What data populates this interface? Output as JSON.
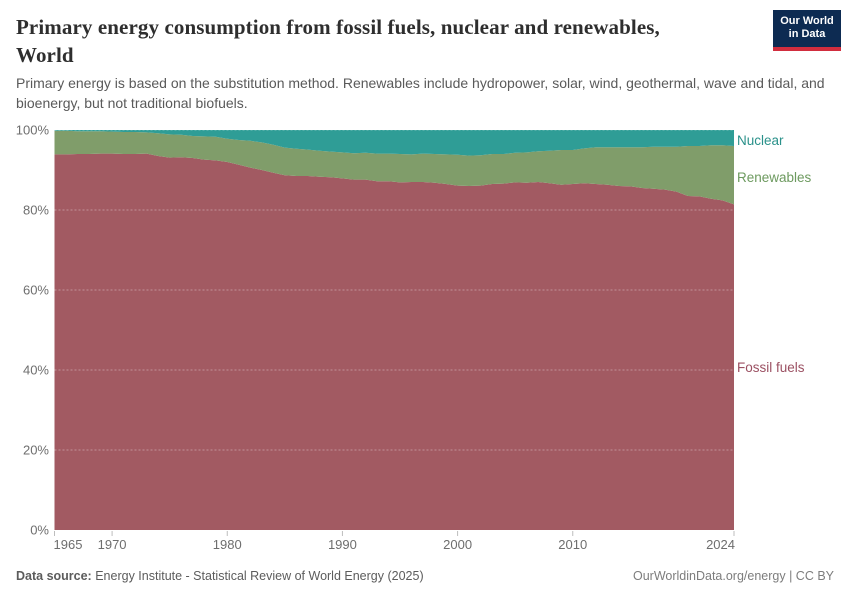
{
  "header": {
    "title": "Primary energy consumption from fossil fuels, nuclear and renewables, World",
    "subtitle": "Primary energy is based on the substitution method. Renewables include hydropower, solar, wind, geothermal, wave and tidal, and bioenergy, but not traditional biofuels.",
    "logo": {
      "line1": "Our World",
      "line2": "in Data",
      "bg_color": "#0d2b52",
      "bar_color": "#d12d3e"
    }
  },
  "footer": {
    "source_label": "Data source:",
    "source_text": "Energy Institute - Statistical Review of World Energy (2025)",
    "credit": "OurWorldinData.org/energy | CC BY"
  },
  "chart_data": {
    "type": "area",
    "stacked": true,
    "unit": "%",
    "ylim": [
      0,
      100
    ],
    "grid": true,
    "legend_position": "right",
    "yticks": [
      "0%",
      "20%",
      "40%",
      "60%",
      "80%",
      "100%"
    ],
    "xticks": [
      1965,
      1970,
      1980,
      1990,
      2000,
      2010,
      2024
    ],
    "x": [
      1965,
      1966,
      1967,
      1968,
      1969,
      1970,
      1971,
      1972,
      1973,
      1974,
      1975,
      1976,
      1977,
      1978,
      1979,
      1980,
      1981,
      1982,
      1983,
      1984,
      1985,
      1986,
      1987,
      1988,
      1989,
      1990,
      1991,
      1992,
      1993,
      1994,
      1995,
      1996,
      1997,
      1998,
      1999,
      2000,
      2001,
      2002,
      2003,
      2004,
      2005,
      2006,
      2007,
      2008,
      2009,
      2010,
      2011,
      2012,
      2013,
      2014,
      2015,
      2016,
      2017,
      2018,
      2019,
      2020,
      2021,
      2022,
      2023,
      2024
    ],
    "series": [
      {
        "name": "Fossil fuels",
        "color": "#a25a62",
        "label_color": "#9b5062",
        "values": [
          93.9,
          93.9,
          94.0,
          94.0,
          94.1,
          94.1,
          94.0,
          94.0,
          94.1,
          93.5,
          93.1,
          93.2,
          93.0,
          92.6,
          92.4,
          92.0,
          91.3,
          90.6,
          90.0,
          89.3,
          88.7,
          88.5,
          88.5,
          88.3,
          88.2,
          87.9,
          87.6,
          87.6,
          87.2,
          87.2,
          86.9,
          87.0,
          87.0,
          86.8,
          86.5,
          86.1,
          86.0,
          86.1,
          86.5,
          86.6,
          86.9,
          86.8,
          87.0,
          86.7,
          86.3,
          86.5,
          86.7,
          86.5,
          86.3,
          86.0,
          85.9,
          85.5,
          85.3,
          85.1,
          84.6,
          83.5,
          83.4,
          82.8,
          82.4,
          81.4
        ]
      },
      {
        "name": "Renewables",
        "color": "#809d6a",
        "label_color": "#6d9a5f",
        "values": [
          5.9,
          5.9,
          5.7,
          5.7,
          5.6,
          5.5,
          5.5,
          5.5,
          5.3,
          5.7,
          5.8,
          5.6,
          5.5,
          5.8,
          5.9,
          5.8,
          6.2,
          6.7,
          6.9,
          7.0,
          6.9,
          6.8,
          6.6,
          6.5,
          6.4,
          6.5,
          6.6,
          6.7,
          6.9,
          6.9,
          7.1,
          6.9,
          7.1,
          7.2,
          7.4,
          7.7,
          7.6,
          7.6,
          7.5,
          7.4,
          7.4,
          7.6,
          7.7,
          8.1,
          8.7,
          8.5,
          8.7,
          9.2,
          9.4,
          9.7,
          9.8,
          10.2,
          10.5,
          10.7,
          11.2,
          12.5,
          12.6,
          13.4,
          13.8,
          14.6
        ]
      },
      {
        "name": "Nuclear",
        "color": "#2f9d96",
        "label_color": "#2a918a",
        "values": [
          0.2,
          0.2,
          0.3,
          0.3,
          0.3,
          0.4,
          0.5,
          0.5,
          0.6,
          0.8,
          1.1,
          1.2,
          1.5,
          1.6,
          1.7,
          2.2,
          2.5,
          2.7,
          3.1,
          3.7,
          4.4,
          4.7,
          4.9,
          5.2,
          5.4,
          5.6,
          5.8,
          5.7,
          5.9,
          5.9,
          6.0,
          6.1,
          5.9,
          6.0,
          6.1,
          6.2,
          6.4,
          6.3,
          6.0,
          6.0,
          5.7,
          5.6,
          5.3,
          5.2,
          5.0,
          5.0,
          4.6,
          4.3,
          4.3,
          4.3,
          4.3,
          4.3,
          4.2,
          4.2,
          4.2,
          4.0,
          4.0,
          3.8,
          3.8,
          4.0
        ]
      }
    ]
  }
}
